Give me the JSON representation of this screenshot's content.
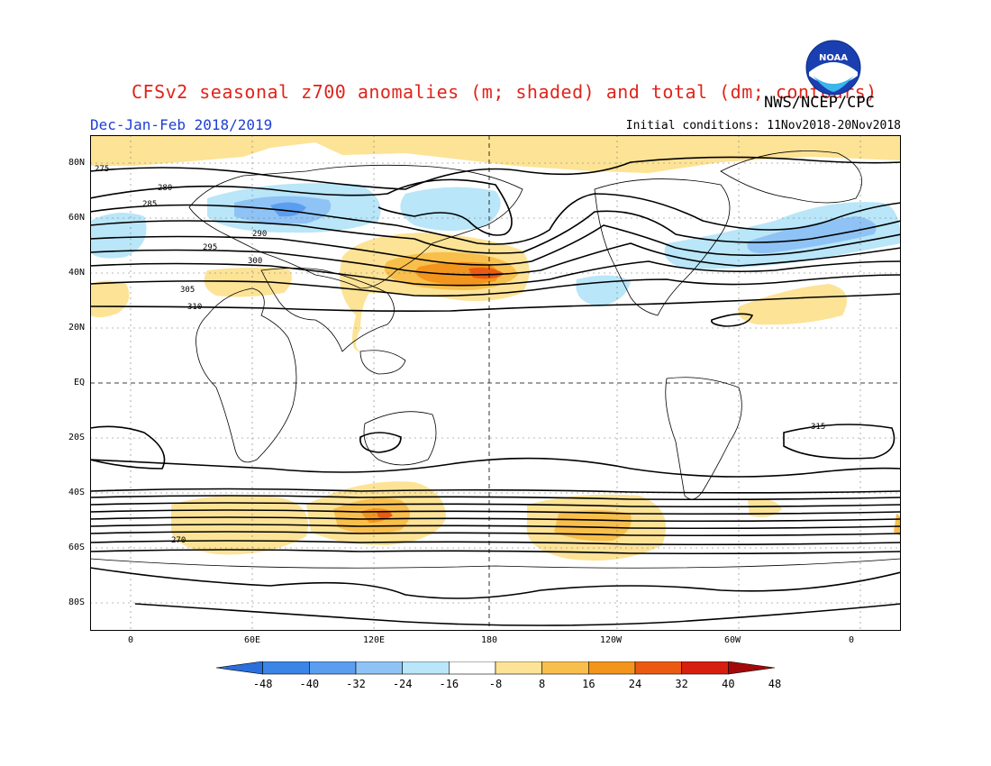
{
  "title": "CFSv2 seasonal z700 anomalies (m; shaded) and total (dm; contours)",
  "agency": "NWS/NCEP/CPC",
  "logo_text": "NOAA",
  "season": "Dec-Jan-Feb 2018/2019",
  "initial_conditions": "Initial conditions: 11Nov2018-20Nov2018",
  "lat_labels": [
    "80N",
    "60N",
    "40N",
    "20N",
    "EQ",
    "20S",
    "40S",
    "60S",
    "80S"
  ],
  "lon_labels": [
    "0",
    "60E",
    "120E",
    "180",
    "120W",
    "60W",
    "0"
  ],
  "contour_labels": [
    "275",
    "280",
    "285",
    "290",
    "295",
    "300",
    "305",
    "310",
    "315",
    "270"
  ],
  "colorbar": {
    "ticks": [
      "-48",
      "-40",
      "-32",
      "-24",
      "-16",
      "-8",
      "8",
      "16",
      "24",
      "32",
      "40",
      "48"
    ],
    "colors": [
      "#2a6fdb",
      "#3a85e6",
      "#5b9ef0",
      "#8fc3f5",
      "#b9e6f8",
      "#ffffff",
      "#fde396",
      "#f9bf4c",
      "#f3951d",
      "#ec5a12",
      "#d61f0e",
      "#a3090a"
    ]
  }
}
